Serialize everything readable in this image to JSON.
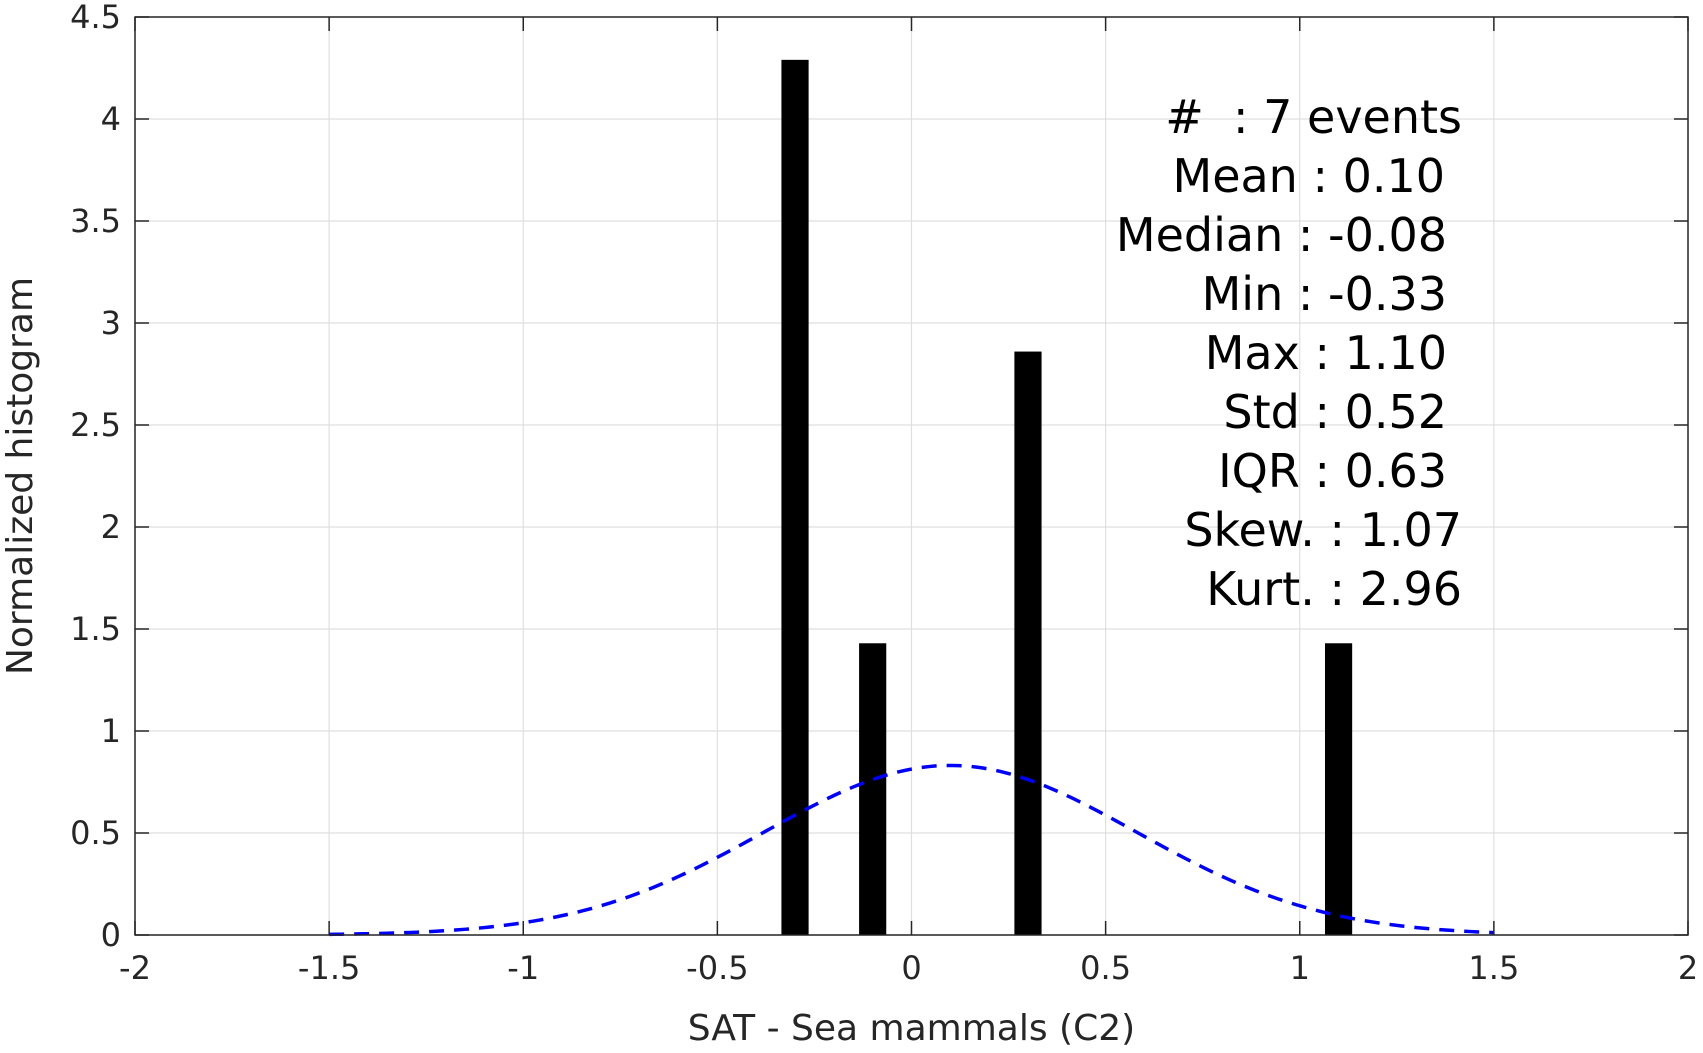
{
  "chart_data": {
    "type": "bar",
    "xlabel": "SAT - Sea mammals (C2)",
    "ylabel": "Normalized histogram",
    "xlim": [
      -2,
      2
    ],
    "ylim": [
      0,
      4.5
    ],
    "grid": true,
    "xticks": [
      -2,
      -1.5,
      -1,
      -0.5,
      0,
      0.5,
      1,
      1.5,
      2
    ],
    "xtick_labels": [
      "-2",
      "-1.5",
      "-1",
      "-0.5",
      "0",
      "0.5",
      "1",
      "1.5",
      "2"
    ],
    "yticks": [
      0,
      0.5,
      1,
      1.5,
      2,
      2.5,
      3,
      3.5,
      4,
      4.5
    ],
    "ytick_labels": [
      "0",
      "0.5",
      "1",
      "1.5",
      "2",
      "2.5",
      "3",
      "3.5",
      "4",
      "4.5"
    ],
    "bar_color": "#000000",
    "bars": [
      {
        "x": -0.3,
        "value": 4.29
      },
      {
        "x": -0.1,
        "value": 1.43
      },
      {
        "x": 0.3,
        "value": 2.86
      },
      {
        "x": 1.1,
        "value": 1.43
      }
    ],
    "fit_curve": {
      "style": "dashed",
      "color": "#0000ff",
      "mean": 0.1,
      "std": 0.48,
      "x_range": [
        -1.5,
        1.5
      ]
    },
    "stats_lines": [
      "#  : 7 events",
      "Mean : 0.10",
      "Median : -0.08",
      "Min : -0.33",
      "Max : 1.10",
      "Std : 0.52",
      "IQR : 0.63",
      "Skew. : 1.07",
      "Kurt. : 2.96"
    ]
  }
}
